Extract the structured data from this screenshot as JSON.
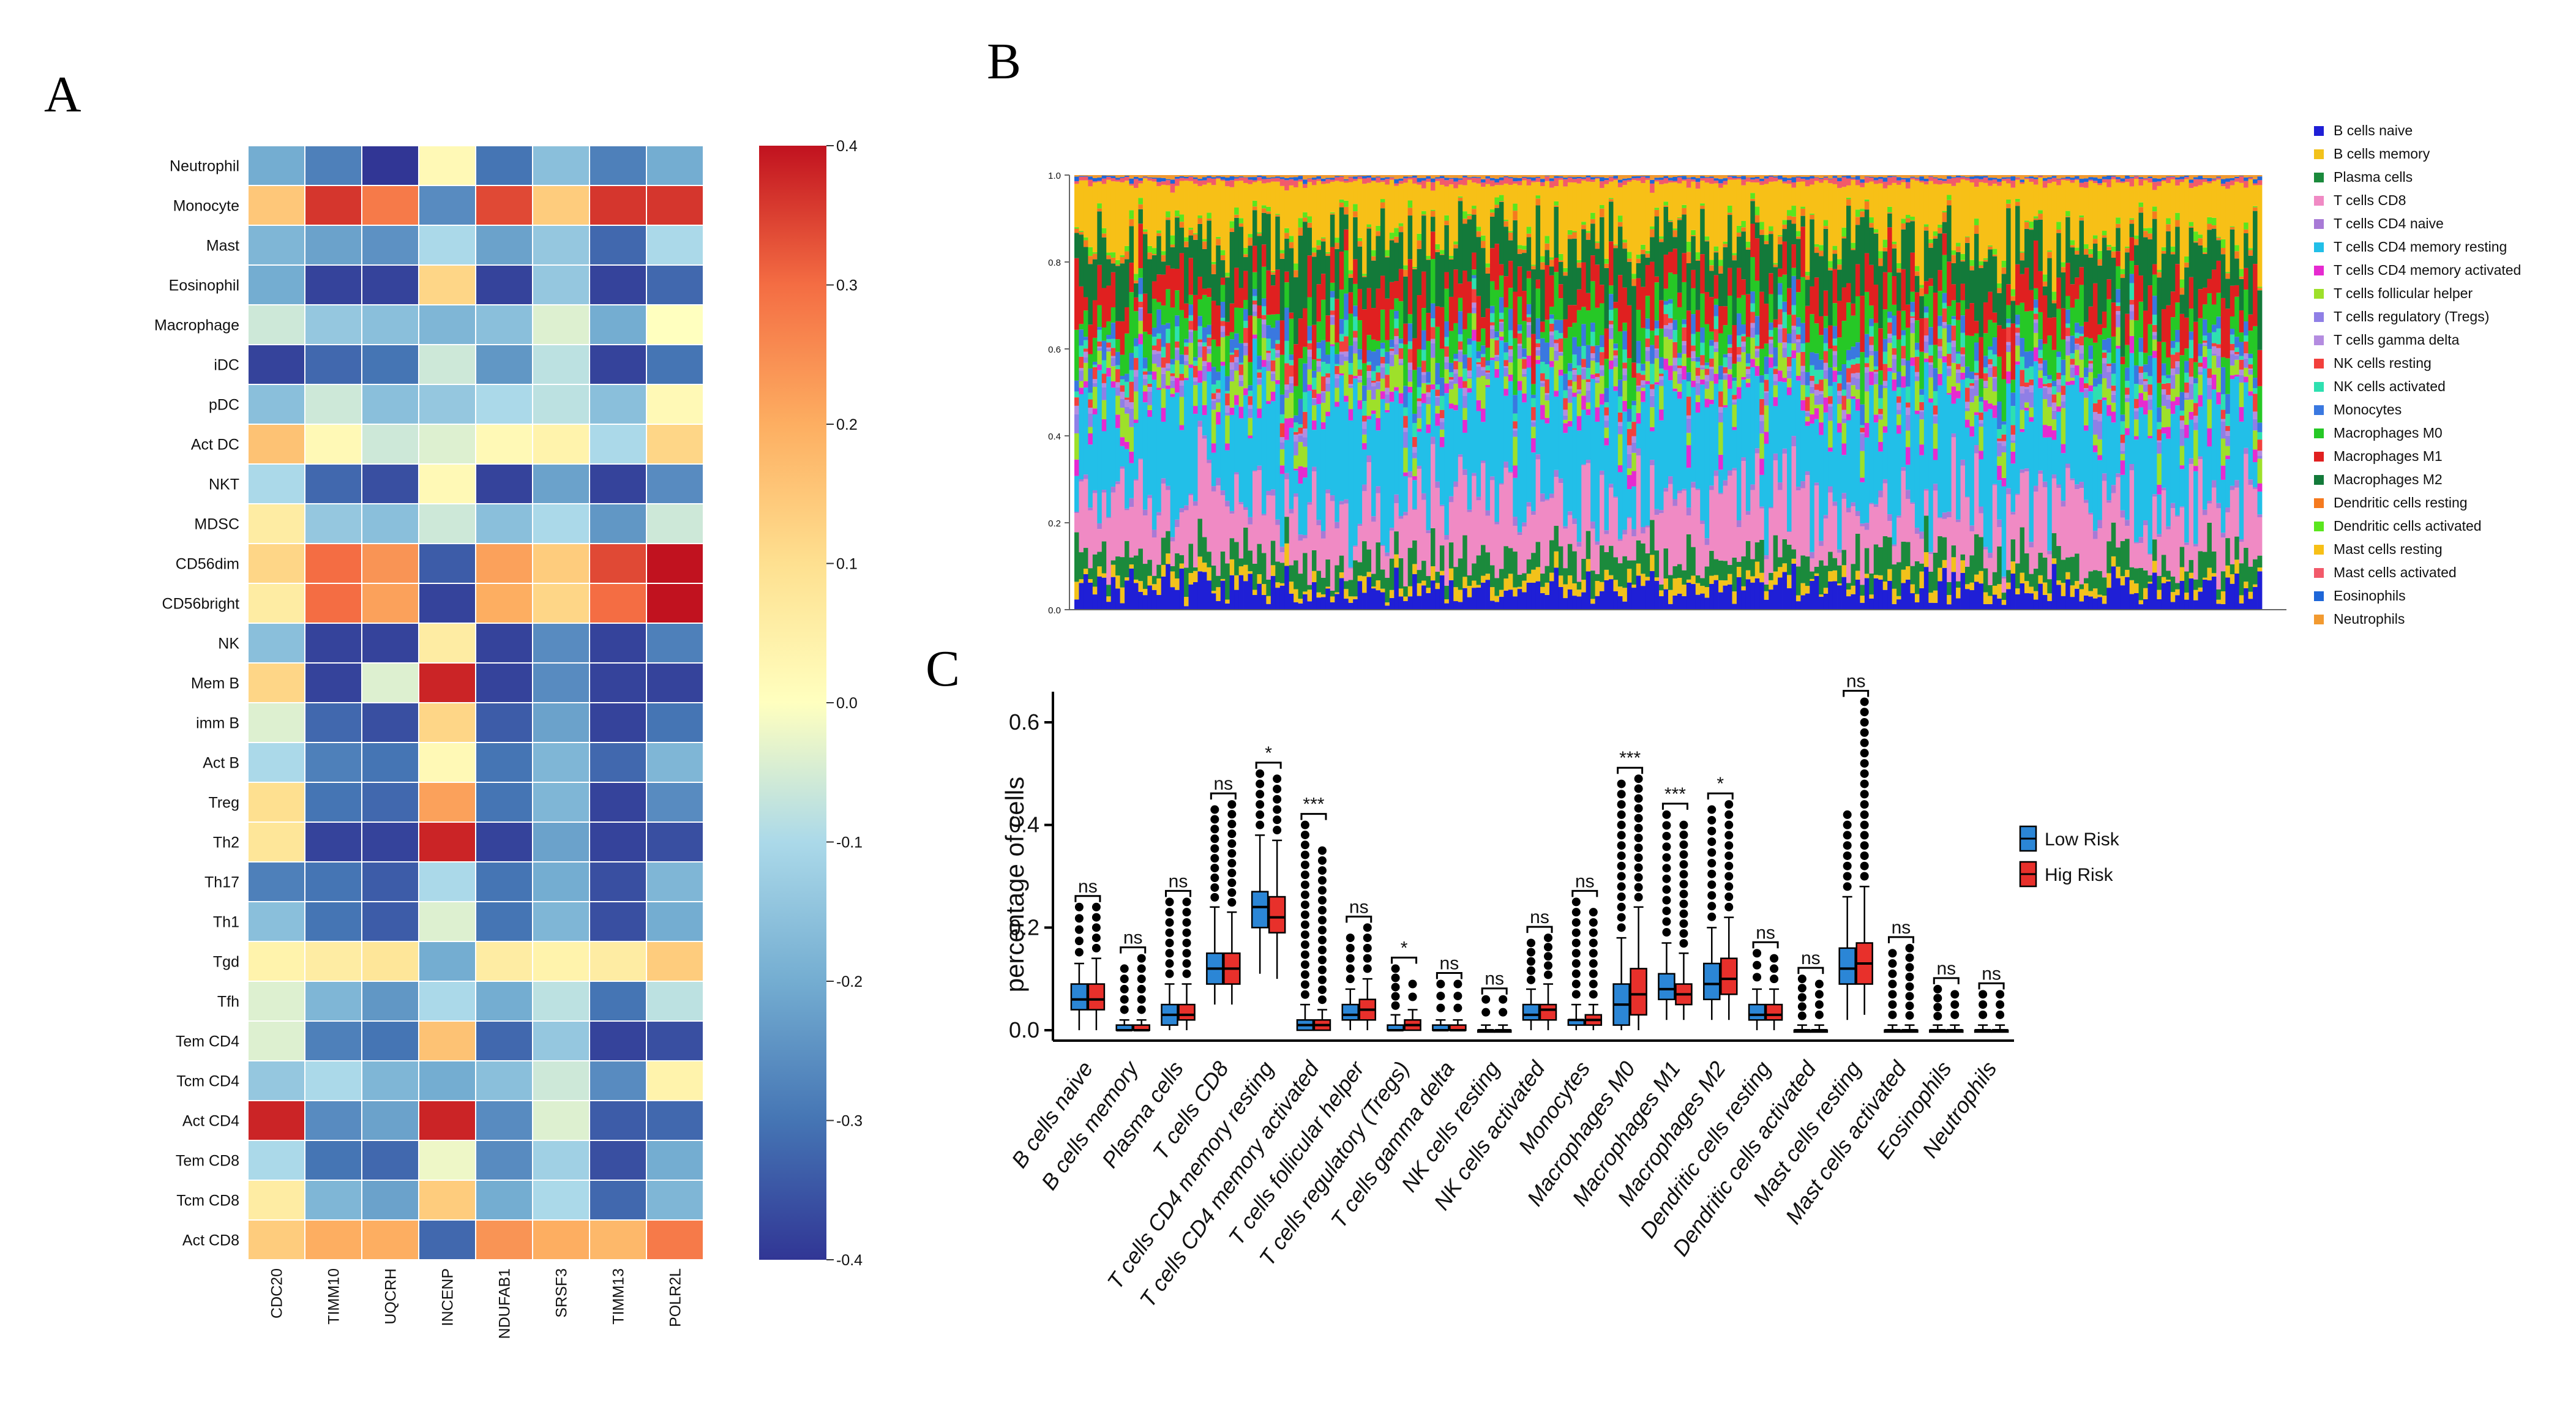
{
  "panels": {
    "a": "A",
    "b": "B",
    "c": "C"
  },
  "chart_data": [
    {
      "type": "heatmap",
      "panel": "A",
      "rows": [
        "Neutrophil",
        "Monocyte",
        "Mast",
        "Eosinophil",
        "Macrophage",
        "iDC",
        "pDC",
        "Act DC",
        "NKT",
        "MDSC",
        "CD56dim",
        "CD56bright",
        "NK",
        "Mem B",
        "imm B",
        "Act B",
        "Treg",
        "Th2",
        "Th17",
        "Th1",
        "Tgd",
        "Tfh",
        "Tem CD4",
        "Tcm CD4",
        "Act CD4",
        "Tem CD8",
        "Tcm CD8",
        "Act CD8"
      ],
      "columns": [
        "CDC20",
        "TIMM10",
        "UQCRH",
        "INCENP",
        "NDUFAB1",
        "SRSF3",
        "TIMM13",
        "POLR2L"
      ],
      "values": [
        [
          -0.2,
          -0.28,
          -0.4,
          0.02,
          -0.3,
          -0.16,
          -0.28,
          -0.2
        ],
        [
          0.15,
          0.36,
          0.28,
          -0.26,
          0.34,
          0.14,
          0.36,
          0.36
        ],
        [
          -0.18,
          -0.22,
          -0.25,
          -0.1,
          -0.22,
          -0.14,
          -0.32,
          -0.1
        ],
        [
          -0.2,
          -0.38,
          -0.38,
          0.12,
          -0.38,
          -0.14,
          -0.38,
          -0.32
        ],
        [
          -0.06,
          -0.14,
          -0.16,
          -0.18,
          -0.16,
          -0.04,
          -0.2,
          0.0
        ],
        [
          -0.38,
          -0.32,
          -0.3,
          -0.06,
          -0.24,
          -0.08,
          -0.38,
          -0.3
        ],
        [
          -0.16,
          -0.06,
          -0.16,
          -0.14,
          -0.1,
          -0.08,
          -0.16,
          0.02
        ],
        [
          0.16,
          0.02,
          -0.06,
          -0.04,
          0.02,
          0.04,
          -0.1,
          0.12
        ],
        [
          -0.1,
          -0.32,
          -0.36,
          0.02,
          -0.38,
          -0.22,
          -0.38,
          -0.26
        ],
        [
          0.06,
          -0.14,
          -0.16,
          -0.06,
          -0.16,
          -0.1,
          -0.24,
          -0.06
        ],
        [
          0.12,
          0.3,
          0.24,
          -0.34,
          0.22,
          0.14,
          0.34,
          0.4
        ],
        [
          0.06,
          0.3,
          0.22,
          -0.38,
          0.2,
          0.12,
          0.3,
          0.4
        ],
        [
          -0.16,
          -0.38,
          -0.38,
          0.06,
          -0.38,
          -0.26,
          -0.38,
          -0.28
        ],
        [
          0.12,
          -0.38,
          -0.04,
          0.38,
          -0.38,
          -0.26,
          -0.38,
          -0.38
        ],
        [
          -0.04,
          -0.32,
          -0.36,
          0.12,
          -0.34,
          -0.22,
          -0.38,
          -0.3
        ],
        [
          -0.1,
          -0.28,
          -0.3,
          0.02,
          -0.3,
          -0.18,
          -0.32,
          -0.18
        ],
        [
          0.1,
          -0.3,
          -0.32,
          0.22,
          -0.3,
          -0.18,
          -0.38,
          -0.26
        ],
        [
          0.08,
          -0.38,
          -0.38,
          0.38,
          -0.38,
          -0.22,
          -0.38,
          -0.36
        ],
        [
          -0.28,
          -0.3,
          -0.34,
          -0.1,
          -0.3,
          -0.2,
          -0.36,
          -0.18
        ],
        [
          -0.16,
          -0.3,
          -0.34,
          -0.04,
          -0.3,
          -0.18,
          -0.36,
          -0.2
        ],
        [
          0.04,
          0.06,
          0.08,
          -0.2,
          0.06,
          0.04,
          0.06,
          0.14
        ],
        [
          -0.04,
          -0.18,
          -0.24,
          -0.1,
          -0.2,
          -0.08,
          -0.3,
          -0.08
        ],
        [
          -0.04,
          -0.28,
          -0.3,
          0.16,
          -0.32,
          -0.14,
          -0.38,
          -0.36
        ],
        [
          -0.14,
          -0.1,
          -0.18,
          -0.2,
          -0.16,
          -0.06,
          -0.26,
          0.04
        ],
        [
          0.38,
          -0.26,
          -0.22,
          0.38,
          -0.26,
          -0.04,
          -0.34,
          -0.32
        ],
        [
          -0.1,
          -0.3,
          -0.32,
          -0.02,
          -0.26,
          -0.12,
          -0.36,
          -0.2
        ],
        [
          0.06,
          -0.18,
          -0.22,
          0.14,
          -0.2,
          -0.1,
          -0.32,
          -0.18
        ],
        [
          0.14,
          0.2,
          0.2,
          -0.32,
          0.24,
          0.2,
          0.18,
          0.28
        ]
      ],
      "colorbar": {
        "ticks": [
          "0.4",
          "0.3",
          "0.2",
          "0.1",
          "0.0",
          "-0.1",
          "-0.2",
          "-0.3",
          "-0.4"
        ],
        "range": [
          -0.4,
          0.4
        ]
      }
    },
    {
      "type": "bar",
      "stacked": true,
      "panel": "B",
      "n_samples": 260,
      "y_ticks": [
        "0.0",
        "0.2",
        "0.4",
        "0.6",
        "0.8",
        "1.0"
      ],
      "ylim": [
        0,
        1
      ],
      "legend_position": "right",
      "series": [
        {
          "name": "B cells naive",
          "color": "#1f1fd6",
          "mean": 0.05
        },
        {
          "name": "B cells memory",
          "color": "#f2c21b",
          "mean": 0.02
        },
        {
          "name": "Plasma cells",
          "color": "#1b8a3c",
          "mean": 0.05
        },
        {
          "name": "T cells CD8",
          "color": "#f08ac4",
          "mean": 0.13
        },
        {
          "name": "T cells CD4 naive",
          "color": "#a87ad6",
          "mean": 0.01
        },
        {
          "name": "T cells CD4 memory resting",
          "color": "#22bfe8",
          "mean": 0.22
        },
        {
          "name": "T cells CD4 memory activated",
          "color": "#e62ad0",
          "mean": 0.02
        },
        {
          "name": "T cells follicular helper",
          "color": "#9ee02a",
          "mean": 0.04
        },
        {
          "name": "T cells regulatory (Tregs)",
          "color": "#8f7fe6",
          "mean": 0.02
        },
        {
          "name": "T cells gamma delta",
          "color": "#b48ce0",
          "mean": 0.01
        },
        {
          "name": "NK cells resting",
          "color": "#f2403c",
          "mean": 0.02
        },
        {
          "name": "NK cells activated",
          "color": "#2ee0b0",
          "mean": 0.02
        },
        {
          "name": "Monocytes",
          "color": "#3a78e0",
          "mean": 0.03
        },
        {
          "name": "Macrophages M0",
          "color": "#26c826",
          "mean": 0.06
        },
        {
          "name": "Macrophages M1",
          "color": "#e02020",
          "mean": 0.07
        },
        {
          "name": "Macrophages M2",
          "color": "#137a3a",
          "mean": 0.1
        },
        {
          "name": "Dendritic cells resting",
          "color": "#f57a1f",
          "mean": 0.01
        },
        {
          "name": "Dendritic cells activated",
          "color": "#5ae61e",
          "mean": 0.01
        },
        {
          "name": "Mast cells resting",
          "color": "#f7c017",
          "mean": 0.12
        },
        {
          "name": "Mast cells activated",
          "color": "#f25a6a",
          "mean": 0.01
        },
        {
          "name": "Eosinophils",
          "color": "#1e66d8",
          "mean": 0.005
        },
        {
          "name": "Neutrophils",
          "color": "#f29a30",
          "mean": 0.005
        }
      ]
    },
    {
      "type": "box",
      "panel": "C",
      "ylabel": "percentage of cells",
      "y_ticks": [
        "0.0",
        "0.2",
        "0.4",
        "0.6"
      ],
      "ylim": [
        0,
        0.68
      ],
      "legend": [
        {
          "name": "Low Risk",
          "color": "#2b86d6"
        },
        {
          "name": "Hig Risk",
          "color": "#e8302b"
        }
      ],
      "legend_position": "right",
      "categories": [
        "B cells naive",
        "B cells memory",
        "Plasma cells",
        "T cells CD8",
        "T cells CD4 memory resting",
        "T cells CD4 memory activated",
        "T cells follicular helper",
        "T cells regulatory (Tregs)",
        "T cells gamma delta",
        "NK cells resting",
        "NK cells activated",
        "Monocytes",
        "Macrophages M0",
        "Macrophages M1",
        "Macrophages M2",
        "Dendritic cells resting",
        "Dendritic cells activated",
        "Mast cells resting",
        "Mast cells activated",
        "Eosinophils",
        "Neutrophils"
      ],
      "significance": [
        "ns",
        "ns",
        "ns",
        "ns",
        "*",
        "***",
        "ns",
        "*",
        "ns",
        "ns",
        "ns",
        "ns",
        "***",
        "***",
        "*",
        "ns",
        "ns",
        "ns",
        "ns",
        "ns",
        "ns"
      ],
      "series": [
        {
          "name": "Low Risk",
          "boxes": [
            [
              0.0,
              0.04,
              0.06,
              0.09,
              0.13
            ],
            [
              0.0,
              0.0,
              0.0,
              0.01,
              0.02
            ],
            [
              0.0,
              0.01,
              0.03,
              0.05,
              0.09
            ],
            [
              0.05,
              0.09,
              0.12,
              0.15,
              0.24
            ],
            [
              0.11,
              0.2,
              0.24,
              0.27,
              0.38
            ],
            [
              0.0,
              0.0,
              0.01,
              0.02,
              0.05
            ],
            [
              0.0,
              0.02,
              0.03,
              0.05,
              0.08
            ],
            [
              0.0,
              0.0,
              0.0,
              0.01,
              0.03
            ],
            [
              0.0,
              0.0,
              0.0,
              0.01,
              0.02
            ],
            [
              0.0,
              0.0,
              0.0,
              0.0,
              0.01
            ],
            [
              0.0,
              0.02,
              0.03,
              0.05,
              0.08
            ],
            [
              0.0,
              0.01,
              0.02,
              0.02,
              0.05
            ],
            [
              0.0,
              0.01,
              0.05,
              0.09,
              0.18
            ],
            [
              0.02,
              0.06,
              0.08,
              0.11,
              0.17
            ],
            [
              0.02,
              0.06,
              0.09,
              0.13,
              0.2
            ],
            [
              0.0,
              0.02,
              0.03,
              0.05,
              0.08
            ],
            [
              0.0,
              0.0,
              0.0,
              0.0,
              0.01
            ],
            [
              0.02,
              0.09,
              0.12,
              0.16,
              0.26
            ],
            [
              0.0,
              0.0,
              0.0,
              0.0,
              0.01
            ],
            [
              0.0,
              0.0,
              0.0,
              0.0,
              0.01
            ],
            [
              0.0,
              0.0,
              0.0,
              0.0,
              0.01
            ]
          ]
        },
        {
          "name": "Hig Risk",
          "boxes": [
            [
              0.0,
              0.04,
              0.06,
              0.09,
              0.14
            ],
            [
              0.0,
              0.0,
              0.0,
              0.01,
              0.02
            ],
            [
              0.0,
              0.02,
              0.03,
              0.05,
              0.09
            ],
            [
              0.05,
              0.09,
              0.12,
              0.15,
              0.23
            ],
            [
              0.1,
              0.19,
              0.22,
              0.26,
              0.37
            ],
            [
              0.0,
              0.0,
              0.01,
              0.02,
              0.04
            ],
            [
              0.0,
              0.02,
              0.04,
              0.06,
              0.1
            ],
            [
              0.0,
              0.0,
              0.01,
              0.02,
              0.04
            ],
            [
              0.0,
              0.0,
              0.0,
              0.01,
              0.02
            ],
            [
              0.0,
              0.0,
              0.0,
              0.0,
              0.01
            ],
            [
              0.0,
              0.02,
              0.04,
              0.05,
              0.09
            ],
            [
              0.0,
              0.01,
              0.02,
              0.03,
              0.05
            ],
            [
              0.0,
              0.03,
              0.07,
              0.12,
              0.24
            ],
            [
              0.02,
              0.05,
              0.07,
              0.09,
              0.15
            ],
            [
              0.02,
              0.07,
              0.1,
              0.14,
              0.22
            ],
            [
              0.0,
              0.02,
              0.03,
              0.05,
              0.08
            ],
            [
              0.0,
              0.0,
              0.0,
              0.0,
              0.01
            ],
            [
              0.03,
              0.09,
              0.13,
              0.17,
              0.28
            ],
            [
              0.0,
              0.0,
              0.0,
              0.0,
              0.01
            ],
            [
              0.0,
              0.0,
              0.0,
              0.0,
              0.01
            ],
            [
              0.0,
              0.0,
              0.0,
              0.0,
              0.01
            ]
          ]
        }
      ],
      "outlier_max": [
        [
          0.24,
          0.24
        ],
        [
          0.12,
          0.14
        ],
        [
          0.25,
          0.25
        ],
        [
          0.43,
          0.44
        ],
        [
          0.5,
          0.49
        ],
        [
          0.4,
          0.35
        ],
        [
          0.18,
          0.2
        ],
        [
          0.12,
          0.09
        ],
        [
          0.09,
          0.09
        ],
        [
          0.06,
          0.06
        ],
        [
          0.17,
          0.18
        ],
        [
          0.25,
          0.23
        ],
        [
          0.48,
          0.49
        ],
        [
          0.42,
          0.4
        ],
        [
          0.43,
          0.44
        ],
        [
          0.15,
          0.14
        ],
        [
          0.1,
          0.09
        ],
        [
          0.42,
          0.64
        ],
        [
          0.15,
          0.16
        ],
        [
          0.08,
          0.07
        ],
        [
          0.07,
          0.07
        ]
      ]
    }
  ]
}
